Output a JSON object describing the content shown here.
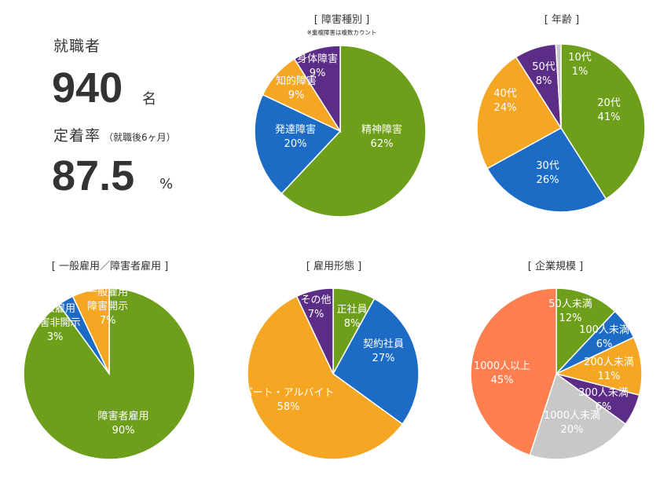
{
  "stats": {
    "employed_label": "就職者",
    "employed_value": "940",
    "employed_unit": "名",
    "retention_label": "定着率",
    "retention_note": "（就職後6ヶ月）",
    "retention_value": "87.5",
    "retention_unit": "%"
  },
  "colors": {
    "green": "#6e9f1b",
    "blue": "#1c6cc6",
    "orange": "#f5a623",
    "purple": "#5b2d86",
    "gray": "#c8c8c8",
    "coral": "#ff7f50"
  },
  "chart_data": [
    {
      "type": "pie",
      "title": "[ 障害種別 ]",
      "note": "※重複障害は複数カウント",
      "labels": [
        "精神障害",
        "発達障害",
        "知的障害",
        "身体障害"
      ],
      "values": [
        62,
        20,
        9,
        9
      ],
      "value_labels": [
        "62%",
        "20%",
        "9%",
        "9%"
      ],
      "colors": [
        "#6e9f1b",
        "#1c6cc6",
        "#f5a623",
        "#5b2d86"
      ]
    },
    {
      "type": "pie",
      "title": "[ 年齢 ]",
      "labels": [
        "20代",
        "30代",
        "40代",
        "50代",
        "10代"
      ],
      "values": [
        41,
        26,
        24,
        8,
        1
      ],
      "value_labels": [
        "41%",
        "26%",
        "24%",
        "8%",
        "1%"
      ],
      "colors": [
        "#6e9f1b",
        "#1c6cc6",
        "#f5a623",
        "#5b2d86",
        "#c8c8c8"
      ]
    },
    {
      "type": "pie",
      "title": "[ 一般雇用／障害者雇用 ]",
      "labels": [
        "障害者雇用",
        "一般雇用 障害非開示",
        "一般雇用 障害開示"
      ],
      "values": [
        90,
        3,
        7
      ],
      "value_labels": [
        "90%",
        "3%",
        "7%"
      ],
      "colors": [
        "#6e9f1b",
        "#1c6cc6",
        "#f5a623"
      ]
    },
    {
      "type": "pie",
      "title": "[ 雇用形態 ]",
      "labels": [
        "正社員",
        "契約社員",
        "パート・アルバイト",
        "その他"
      ],
      "values": [
        8,
        27,
        58,
        7
      ],
      "value_labels": [
        "8%",
        "27%",
        "58%",
        "7%"
      ],
      "colors": [
        "#6e9f1b",
        "#1c6cc6",
        "#f5a623",
        "#5b2d86"
      ]
    },
    {
      "type": "pie",
      "title": "[ 企業規模 ]",
      "labels": [
        "50人未満",
        "100人未満",
        "200人未満",
        "300人未満",
        "1000人未満",
        "1000人以上"
      ],
      "values": [
        12,
        6,
        11,
        6,
        20,
        45
      ],
      "value_labels": [
        "12%",
        "6%",
        "11%",
        "6%",
        "20%",
        "45%"
      ],
      "colors": [
        "#6e9f1b",
        "#1c6cc6",
        "#f5a623",
        "#5b2d86",
        "#c8c8c8",
        "#ff7f50"
      ]
    }
  ]
}
